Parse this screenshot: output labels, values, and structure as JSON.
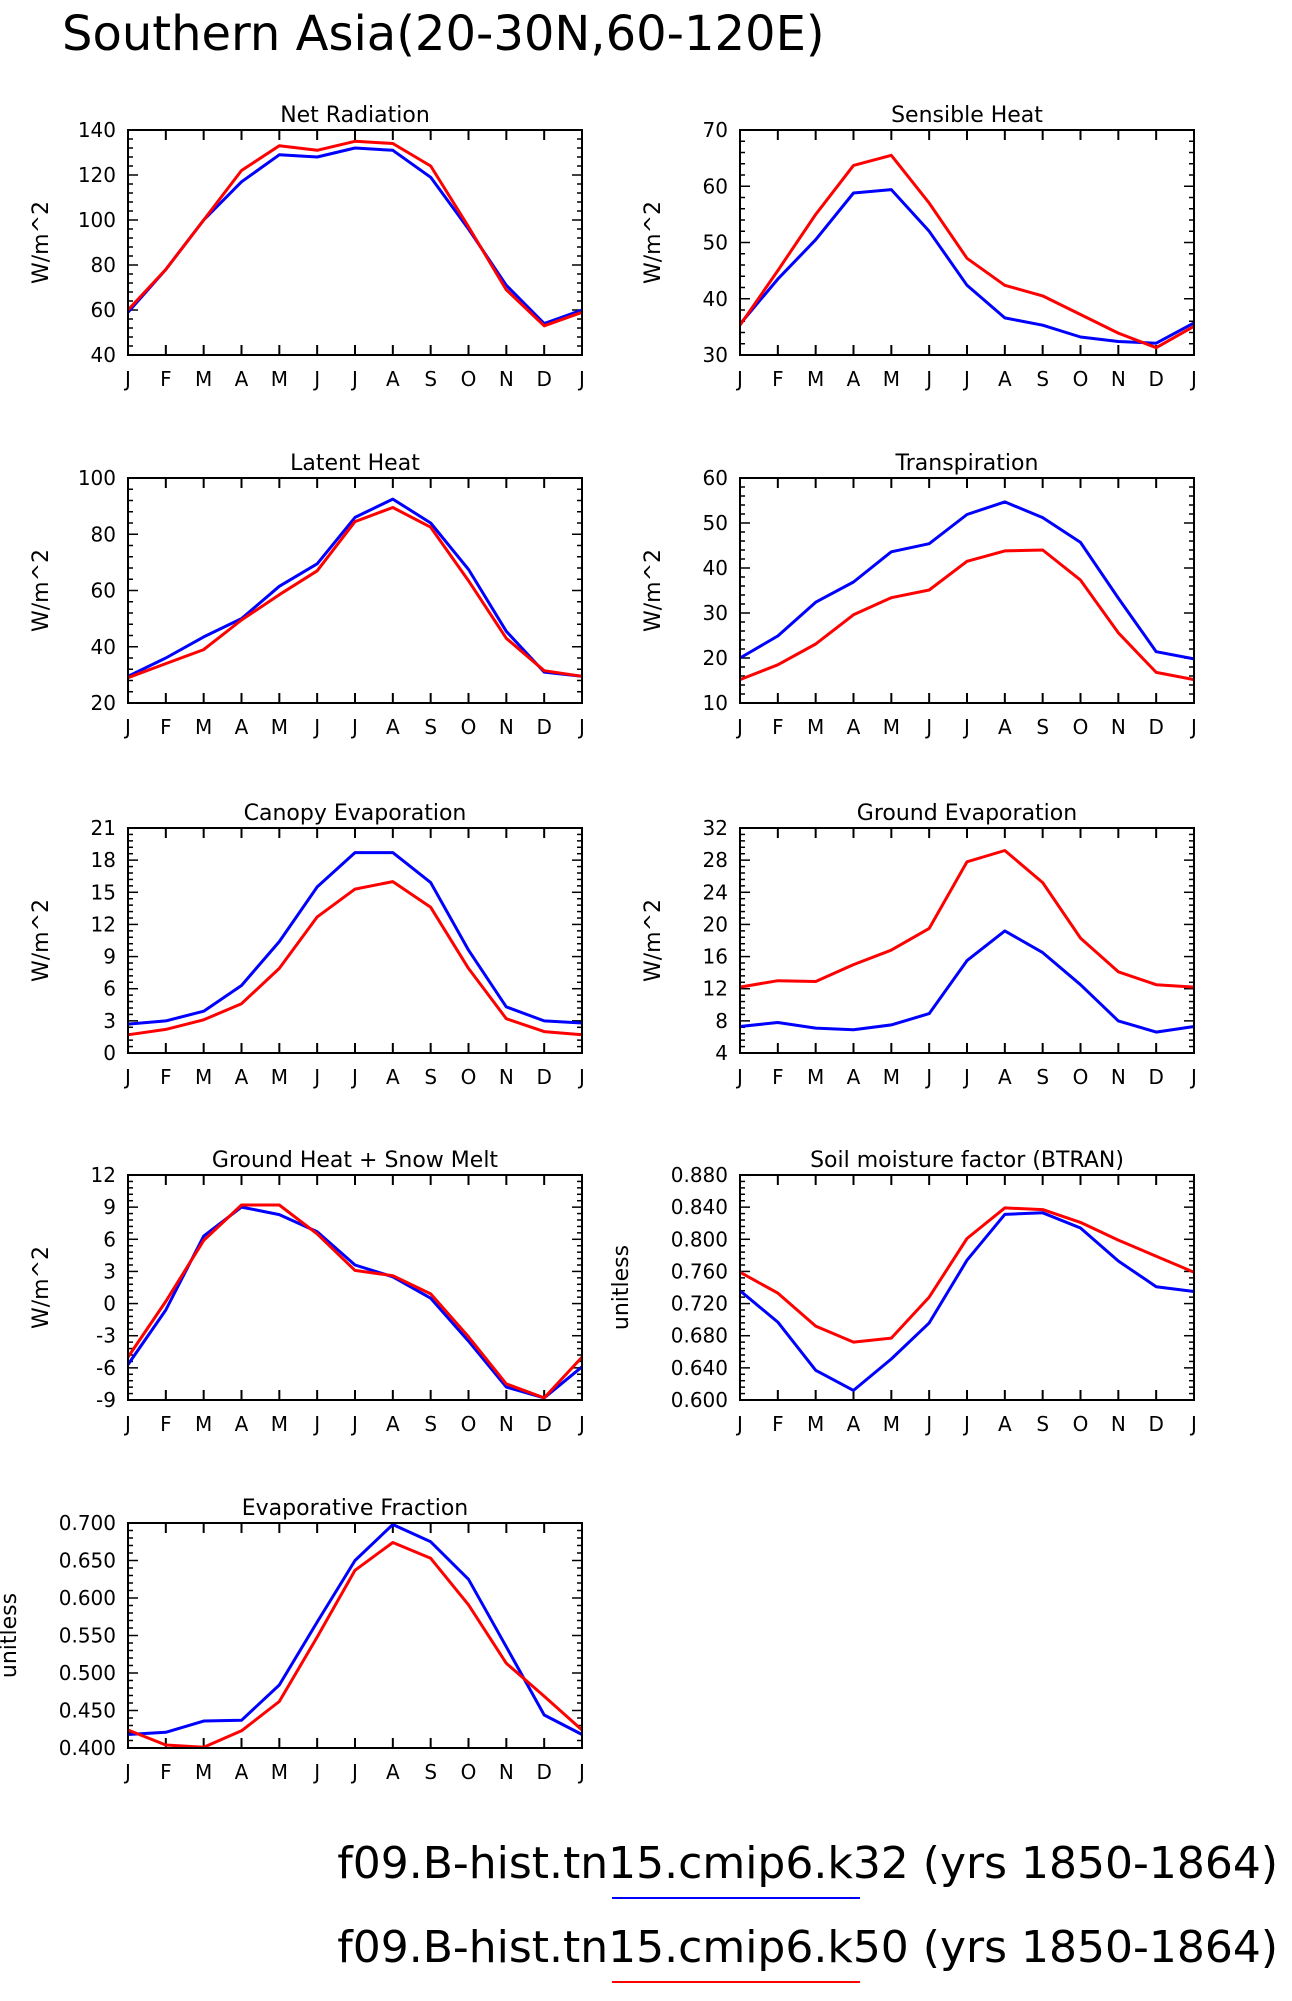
{
  "title": "Southern Asia(20-30N,60-120E)",
  "months": [
    "J",
    "F",
    "M",
    "A",
    "M",
    "J",
    "J",
    "A",
    "S",
    "O",
    "N",
    "D",
    "J"
  ],
  "legend": [
    {
      "label": "f09.B-hist.tn15.cmip6.k32 (yrs 1850-1864)",
      "color": "#0000ff"
    },
    {
      "label": "f09.B-hist.tn15.cmip6.k50 (yrs 1850-1864)",
      "color": "#ff0000"
    }
  ],
  "chart_data": [
    {
      "type": "line",
      "title": "Net Radiation",
      "ylabel": "W/m^2",
      "ylim": [
        40,
        140
      ],
      "yticks": [
        "40",
        "60",
        "80",
        "100",
        "120",
        "140"
      ],
      "series": [
        {
          "color": "#0000ff",
          "values": [
            59,
            78,
            100,
            117,
            129,
            128,
            132,
            131,
            119,
            96,
            71,
            54,
            60
          ]
        },
        {
          "color": "#ff0000",
          "values": [
            60,
            78,
            100,
            122,
            133,
            131,
            135,
            134,
            124,
            97,
            69,
            53,
            59
          ]
        }
      ]
    },
    {
      "type": "line",
      "title": "Sensible Heat",
      "ylabel": "W/m^2",
      "ylim": [
        30,
        70
      ],
      "yticks": [
        "30",
        "40",
        "50",
        "60",
        "70"
      ],
      "series": [
        {
          "color": "#0000ff",
          "values": [
            35.5,
            43.5,
            50.5,
            58.8,
            59.4,
            52,
            42.4,
            36.6,
            35.3,
            33.2,
            32.4,
            32.1,
            35.7
          ]
        },
        {
          "color": "#ff0000",
          "values": [
            35.3,
            45,
            55,
            63.7,
            65.5,
            57,
            47.2,
            42.4,
            40.5,
            37.2,
            33.9,
            31.3,
            35.1
          ]
        }
      ]
    },
    {
      "type": "line",
      "title": "Latent Heat",
      "ylabel": "W/m^2",
      "ylim": [
        20,
        100
      ],
      "yticks": [
        "20",
        "40",
        "60",
        "80",
        "100"
      ],
      "series": [
        {
          "color": "#0000ff",
          "values": [
            29.5,
            36,
            43.5,
            50,
            61.5,
            69.5,
            86,
            92.5,
            84,
            67.5,
            45.5,
            31,
            29.5
          ]
        },
        {
          "color": "#ff0000",
          "values": [
            29,
            34,
            39,
            49.5,
            58.5,
            67,
            84.5,
            89.5,
            82.5,
            63.5,
            43,
            31.5,
            29.5
          ]
        }
      ]
    },
    {
      "type": "line",
      "title": "Transpiration",
      "ylabel": "W/m^2",
      "ylim": [
        10,
        60
      ],
      "yticks": [
        "10",
        "20",
        "30",
        "40",
        "50",
        "60"
      ],
      "series": [
        {
          "color": "#0000ff",
          "values": [
            20,
            24.9,
            32.4,
            36.9,
            43.6,
            45.4,
            51.9,
            54.7,
            51.2,
            45.7,
            33.3,
            21.4,
            19.8
          ]
        },
        {
          "color": "#ff0000",
          "values": [
            15.2,
            18.5,
            23.1,
            29.6,
            33.4,
            35.1,
            41.5,
            43.8,
            44,
            37.3,
            25.6,
            16.8,
            15.2
          ]
        }
      ]
    },
    {
      "type": "line",
      "title": "Canopy Evaporation",
      "ylabel": "W/m^2",
      "ylim": [
        0,
        21
      ],
      "yticks": [
        "0",
        "3",
        "6",
        "9",
        "12",
        "15",
        "18",
        "21"
      ],
      "series": [
        {
          "color": "#0000ff",
          "values": [
            2.7,
            3,
            3.9,
            6.3,
            10.4,
            15.5,
            18.7,
            18.7,
            15.9,
            9.6,
            4.3,
            3,
            2.8
          ]
        },
        {
          "color": "#ff0000",
          "values": [
            1.7,
            2.2,
            3.1,
            4.6,
            7.9,
            12.7,
            15.3,
            16,
            13.6,
            7.9,
            3.2,
            2,
            1.7
          ]
        }
      ]
    },
    {
      "type": "line",
      "title": "Ground Evaporation",
      "ylabel": "W/m^2",
      "ylim": [
        4,
        32
      ],
      "yticks": [
        "4",
        "8",
        "12",
        "16",
        "20",
        "24",
        "28",
        "32"
      ],
      "series": [
        {
          "color": "#0000ff",
          "values": [
            7.3,
            7.8,
            7.1,
            6.9,
            7.5,
            8.9,
            15.5,
            19.2,
            16.5,
            12.5,
            8,
            6.6,
            7.3
          ]
        },
        {
          "color": "#ff0000",
          "values": [
            12.2,
            13,
            12.9,
            15,
            16.8,
            19.5,
            27.8,
            29.2,
            25.2,
            18.3,
            14.1,
            12.5,
            12.2
          ]
        }
      ]
    },
    {
      "type": "line",
      "title": "Ground Heat + Snow Melt",
      "ylabel": "W/m^2",
      "ylim": [
        -9,
        12
      ],
      "yticks": [
        "-9",
        "-6",
        "-3",
        "0",
        "3",
        "6",
        "9",
        "12"
      ],
      "series": [
        {
          "color": "#0000ff",
          "values": [
            -5.7,
            -0.6,
            6.3,
            9.0,
            8.3,
            6.7,
            3.6,
            2.5,
            0.5,
            -3.5,
            -7.8,
            -8.8,
            -5.9
          ]
        },
        {
          "color": "#ff0000",
          "values": [
            -5.0,
            0.2,
            5.9,
            9.2,
            9.2,
            6.5,
            3.1,
            2.6,
            0.9,
            -3.1,
            -7.5,
            -8.8,
            -5.0
          ]
        }
      ]
    },
    {
      "type": "line",
      "title": "Soil moisture factor (BTRAN)",
      "ylabel": "unitless",
      "ylim": [
        0.6,
        0.88
      ],
      "yticks": [
        "0.600",
        "0.640",
        "0.680",
        "0.720",
        "0.760",
        "0.800",
        "0.840",
        "0.880"
      ],
      "series": [
        {
          "color": "#0000ff",
          "values": [
            0.736,
            0.697,
            0.637,
            0.612,
            0.651,
            0.696,
            0.774,
            0.831,
            0.833,
            0.814,
            0.773,
            0.741,
            0.735
          ]
        },
        {
          "color": "#ff0000",
          "values": [
            0.759,
            0.733,
            0.692,
            0.672,
            0.677,
            0.728,
            0.801,
            0.839,
            0.837,
            0.821,
            0.799,
            0.779,
            0.759
          ]
        }
      ]
    },
    {
      "type": "line",
      "title": "Evaporative Fraction",
      "ylabel": "unitless",
      "ylim": [
        0.4,
        0.7
      ],
      "yticks": [
        "0.400",
        "0.450",
        "0.500",
        "0.550",
        "0.600",
        "0.650",
        "0.700"
      ],
      "series": [
        {
          "color": "#0000ff",
          "values": [
            0.418,
            0.421,
            0.436,
            0.437,
            0.484,
            0.568,
            0.65,
            0.698,
            0.675,
            0.625,
            0.535,
            0.444,
            0.418
          ]
        },
        {
          "color": "#ff0000",
          "values": [
            0.424,
            0.404,
            0.401,
            0.423,
            0.462,
            0.548,
            0.637,
            0.674,
            0.653,
            0.591,
            0.513,
            0.469,
            0.424
          ]
        }
      ]
    }
  ]
}
